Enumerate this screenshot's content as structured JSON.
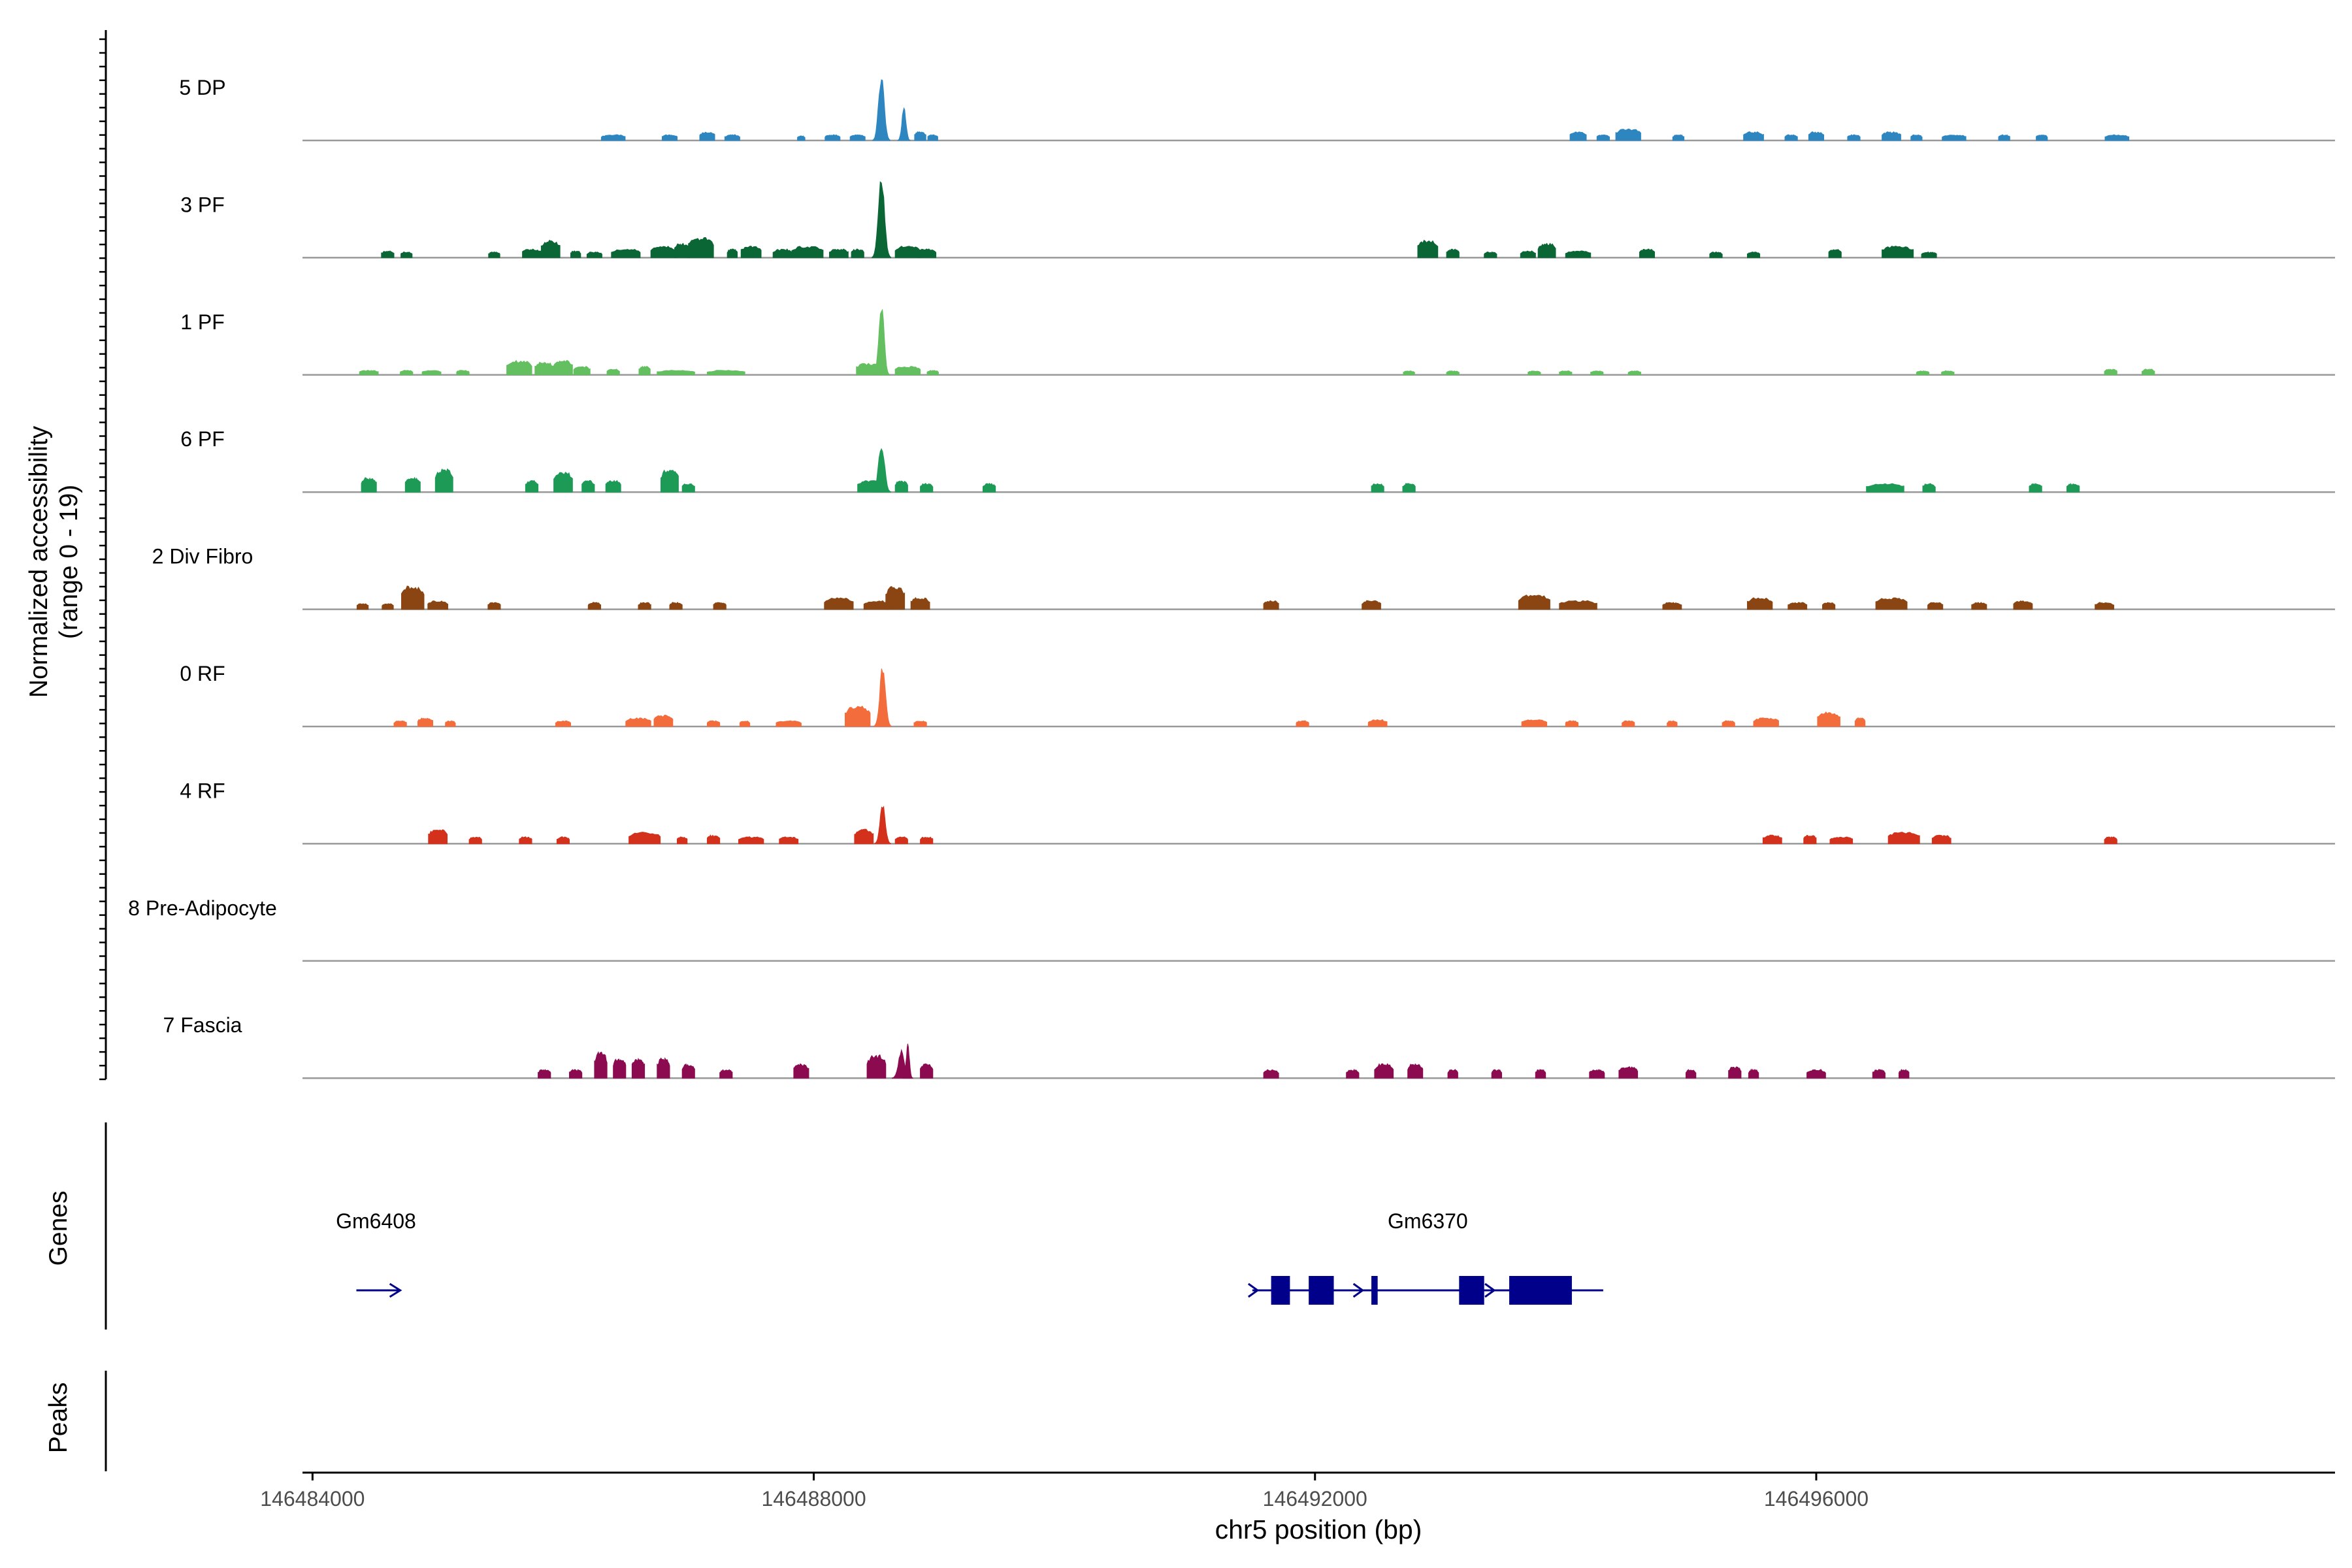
{
  "chart_data": {
    "type": "area",
    "title": "",
    "xlabel": "chr5 position (bp)",
    "ylabel_line1": "Normalized accessibility",
    "ylabel_line2": "(range 0 - 19)",
    "yrange": [
      0,
      19
    ],
    "xlim": [
      146483920,
      146500140
    ],
    "x_ticks": [
      146484000,
      146488000,
      146492000,
      146496000
    ],
    "x_tick_labels": [
      "146484000",
      "146488000",
      "146492000",
      "146496000"
    ],
    "section_labels": {
      "genes": "Genes",
      "peaks": "Peaks"
    },
    "series": [
      {
        "name": "5 DP",
        "color": "#2e86c1",
        "peaks": [
          [
            146486400,
            1.0,
            190
          ],
          [
            146486850,
            1.0,
            120
          ],
          [
            146487150,
            1.5,
            120
          ],
          [
            146487350,
            1.0,
            120
          ],
          [
            146487900,
            0.8,
            60
          ],
          [
            146488150,
            1.0,
            120
          ],
          [
            146488350,
            1.0,
            120
          ],
          [
            146488540,
            12.0,
            140
          ],
          [
            146488720,
            6.0,
            100
          ],
          [
            146488850,
            1.5,
            90
          ],
          [
            146488950,
            1.0,
            80
          ],
          [
            146494100,
            1.5,
            130
          ],
          [
            146494300,
            1.0,
            100
          ],
          [
            146494500,
            2.0,
            200
          ],
          [
            146494900,
            1.0,
            90
          ],
          [
            146495500,
            1.5,
            160
          ],
          [
            146495800,
            1.0,
            100
          ],
          [
            146496000,
            1.5,
            120
          ],
          [
            146496300,
            1.0,
            100
          ],
          [
            146496600,
            1.5,
            150
          ],
          [
            146496800,
            1.0,
            90
          ],
          [
            146497100,
            1.0,
            190
          ],
          [
            146497500,
            1.0,
            90
          ],
          [
            146497800,
            1.0,
            90
          ],
          [
            146498400,
            1.0,
            190
          ]
        ]
      },
      {
        "name": "3 PF",
        "color": "#0a6634",
        "peaks": [
          [
            146484600,
            1.2,
            100
          ],
          [
            146484750,
            1.0,
            90
          ],
          [
            146485450,
            1.0,
            90
          ],
          [
            146485750,
            1.5,
            150
          ],
          [
            146485900,
            3.0,
            150
          ],
          [
            146486100,
            1.2,
            80
          ],
          [
            146486250,
            1.0,
            120
          ],
          [
            146486500,
            1.5,
            230
          ],
          [
            146486800,
            2.0,
            200
          ],
          [
            146486950,
            2.5,
            120
          ],
          [
            146487100,
            3.5,
            200
          ],
          [
            146487350,
            1.5,
            80
          ],
          [
            146487500,
            2.0,
            160
          ],
          [
            146487750,
            1.5,
            150
          ],
          [
            146487950,
            2.0,
            250
          ],
          [
            146488200,
            1.5,
            150
          ],
          [
            146488350,
            1.5,
            100
          ],
          [
            146488540,
            15.0,
            150
          ],
          [
            146488750,
            2.0,
            200
          ],
          [
            146488900,
            1.5,
            150
          ],
          [
            146492900,
            3.0,
            160
          ],
          [
            146493100,
            1.5,
            100
          ],
          [
            146493400,
            1.0,
            100
          ],
          [
            146493700,
            1.2,
            120
          ],
          [
            146493850,
            2.5,
            140
          ],
          [
            146494100,
            1.2,
            200
          ],
          [
            146494650,
            1.5,
            120
          ],
          [
            146495200,
            1.0,
            100
          ],
          [
            146495500,
            1.0,
            100
          ],
          [
            146496150,
            1.5,
            100
          ],
          [
            146496650,
            2.0,
            250
          ],
          [
            146496900,
            1.0,
            120
          ]
        ]
      },
      {
        "name": "1 PF",
        "color": "#63bf5f",
        "peaks": [
          [
            146484450,
            0.8,
            150
          ],
          [
            146484750,
            0.8,
            100
          ],
          [
            146484950,
            0.8,
            150
          ],
          [
            146485200,
            0.8,
            100
          ],
          [
            146485650,
            2.5,
            200
          ],
          [
            146485850,
            2.2,
            150
          ],
          [
            146486000,
            2.5,
            150
          ],
          [
            146486150,
            1.5,
            130
          ],
          [
            146486400,
            1.0,
            100
          ],
          [
            146486650,
            1.5,
            90
          ],
          [
            146486900,
            0.8,
            300
          ],
          [
            146487300,
            0.8,
            300
          ],
          [
            146488450,
            2.0,
            220
          ],
          [
            146488540,
            13.0,
            130
          ],
          [
            146488750,
            1.5,
            200
          ],
          [
            146488950,
            0.8,
            90
          ],
          [
            146492750,
            0.7,
            90
          ],
          [
            146493100,
            0.7,
            100
          ],
          [
            146493750,
            0.7,
            100
          ],
          [
            146494000,
            0.7,
            100
          ],
          [
            146494250,
            0.7,
            100
          ],
          [
            146494550,
            0.7,
            100
          ],
          [
            146496850,
            0.7,
            100
          ],
          [
            146497050,
            0.7,
            100
          ],
          [
            146498350,
            1.0,
            100
          ],
          [
            146498650,
            1.0,
            100
          ]
        ]
      },
      {
        "name": "6 PF",
        "color": "#1e9a57",
        "peaks": [
          [
            146484450,
            2.5,
            120
          ],
          [
            146484800,
            2.5,
            120
          ],
          [
            146485050,
            4.0,
            140
          ],
          [
            146485750,
            2.0,
            100
          ],
          [
            146486000,
            3.5,
            150
          ],
          [
            146486200,
            2.0,
            100
          ],
          [
            146486400,
            2.0,
            120
          ],
          [
            146486850,
            4.0,
            140
          ],
          [
            146487000,
            1.5,
            100
          ],
          [
            146488450,
            2.0,
            200
          ],
          [
            146488700,
            2.0,
            100
          ],
          [
            146488540,
            9.0,
            150
          ],
          [
            146488900,
            1.5,
            100
          ],
          [
            146489400,
            1.5,
            100
          ],
          [
            146492500,
            1.5,
            100
          ],
          [
            146492750,
            1.5,
            100
          ],
          [
            146496550,
            1.5,
            300
          ],
          [
            146496900,
            1.5,
            100
          ],
          [
            146497750,
            1.5,
            100
          ],
          [
            146498050,
            1.5,
            100
          ]
        ]
      },
      {
        "name": "2 Div Fibro",
        "color": "#8b4513",
        "peaks": [
          [
            146484400,
            1.0,
            90
          ],
          [
            146484600,
            1.0,
            90
          ],
          [
            146484800,
            4.0,
            180
          ],
          [
            146485000,
            1.5,
            160
          ],
          [
            146485450,
            1.2,
            100
          ],
          [
            146486250,
            1.2,
            100
          ],
          [
            146486650,
            1.2,
            100
          ],
          [
            146486900,
            1.2,
            100
          ],
          [
            146487250,
            1.2,
            100
          ],
          [
            146488200,
            2.0,
            230
          ],
          [
            146488500,
            1.5,
            200
          ],
          [
            146488650,
            4.0,
            150
          ],
          [
            146488850,
            2.0,
            150
          ],
          [
            146491650,
            1.5,
            120
          ],
          [
            146492450,
            1.5,
            150
          ],
          [
            146493750,
            2.5,
            250
          ],
          [
            146494100,
            1.5,
            300
          ],
          [
            146494850,
            1.2,
            150
          ],
          [
            146495550,
            2.0,
            200
          ],
          [
            146495850,
            1.2,
            150
          ],
          [
            146496100,
            1.2,
            100
          ],
          [
            146496600,
            2.0,
            250
          ],
          [
            146496950,
            1.2,
            120
          ],
          [
            146497300,
            1.2,
            120
          ],
          [
            146497650,
            1.5,
            150
          ],
          [
            146498300,
            1.2,
            150
          ]
        ]
      },
      {
        "name": "0 RF",
        "color": "#f26c3c",
        "peaks": [
          [
            146484700,
            1.0,
            100
          ],
          [
            146484900,
            1.5,
            120
          ],
          [
            146485100,
            1.0,
            80
          ],
          [
            146486000,
            1.0,
            120
          ],
          [
            146486600,
            1.5,
            200
          ],
          [
            146486800,
            2.0,
            150
          ],
          [
            146487200,
            1.0,
            100
          ],
          [
            146487450,
            1.0,
            80
          ],
          [
            146487800,
            1.0,
            200
          ],
          [
            146488350,
            3.5,
            200
          ],
          [
            146488550,
            11.0,
            140
          ],
          [
            146488850,
            1.0,
            100
          ],
          [
            146491900,
            1.0,
            100
          ],
          [
            146492500,
            1.2,
            150
          ],
          [
            146493750,
            1.2,
            200
          ],
          [
            146494050,
            1.0,
            100
          ],
          [
            146494500,
            1.0,
            100
          ],
          [
            146494850,
            1.0,
            80
          ],
          [
            146495300,
            1.0,
            100
          ],
          [
            146495600,
            1.5,
            200
          ],
          [
            146496100,
            2.5,
            180
          ],
          [
            146496350,
            1.5,
            80
          ]
        ]
      },
      {
        "name": "4 RF",
        "color": "#d3311c",
        "peaks": [
          [
            146485000,
            2.5,
            150
          ],
          [
            146485300,
            1.2,
            100
          ],
          [
            146485700,
            1.2,
            100
          ],
          [
            146486000,
            1.2,
            100
          ],
          [
            146486650,
            2.0,
            250
          ],
          [
            146486950,
            1.2,
            80
          ],
          [
            146487200,
            1.5,
            100
          ],
          [
            146487500,
            1.2,
            200
          ],
          [
            146487800,
            1.2,
            150
          ],
          [
            146488400,
            2.5,
            150
          ],
          [
            146488700,
            1.2,
            100
          ],
          [
            146488550,
            7.0,
            130
          ],
          [
            146488900,
            1.2,
            100
          ],
          [
            146495650,
            1.5,
            150
          ],
          [
            146495950,
            1.5,
            100
          ],
          [
            146496200,
            1.2,
            180
          ],
          [
            146496700,
            2.0,
            250
          ],
          [
            146497000,
            1.5,
            150
          ],
          [
            146498350,
            1.2,
            100
          ]
        ]
      },
      {
        "name": "8 Pre-Adipocyte",
        "color": "#999999",
        "peaks": []
      },
      {
        "name": "7 Fascia",
        "color": "#8b0a50",
        "peaks": [
          [
            146485850,
            1.5,
            100
          ],
          [
            146486100,
            1.5,
            100
          ],
          [
            146486300,
            4.5,
            100
          ],
          [
            146486450,
            3.5,
            100
          ],
          [
            146486600,
            3.5,
            100
          ],
          [
            146486800,
            3.5,
            100
          ],
          [
            146487000,
            2.5,
            100
          ],
          [
            146487300,
            1.5,
            100
          ],
          [
            146487900,
            2.5,
            120
          ],
          [
            146488500,
            4.0,
            150
          ],
          [
            146488700,
            5.0,
            150
          ],
          [
            146488750,
            6.0,
            80
          ],
          [
            146488900,
            2.5,
            100
          ],
          [
            146491650,
            1.5,
            120
          ],
          [
            146492300,
            1.5,
            100
          ],
          [
            146492550,
            2.5,
            150
          ],
          [
            146492800,
            2.5,
            120
          ],
          [
            146493100,
            1.5,
            80
          ],
          [
            146493450,
            1.5,
            80
          ],
          [
            146493800,
            1.5,
            80
          ],
          [
            146494250,
            1.5,
            120
          ],
          [
            146494500,
            2.0,
            150
          ],
          [
            146495000,
            1.5,
            80
          ],
          [
            146495350,
            2.0,
            100
          ],
          [
            146495500,
            1.5,
            80
          ],
          [
            146496000,
            1.5,
            150
          ],
          [
            146496500,
            1.5,
            100
          ],
          [
            146496700,
            1.5,
            80
          ]
        ]
      }
    ],
    "genes": [
      {
        "name": "Gm6408",
        "color": "#00008b",
        "start": 146484350,
        "end": 146484700,
        "strand": "+",
        "exons": []
      },
      {
        "name": "Gm6370",
        "color": "#00008b",
        "start": 146491500,
        "end": 146494300,
        "strand": "+",
        "exons": [
          [
            146491650,
            146491800
          ],
          [
            146491950,
            146492150
          ],
          [
            146492450,
            146492500
          ],
          [
            146493150,
            146493350
          ],
          [
            146493550,
            146494050
          ]
        ]
      }
    ],
    "peaks_track": []
  }
}
